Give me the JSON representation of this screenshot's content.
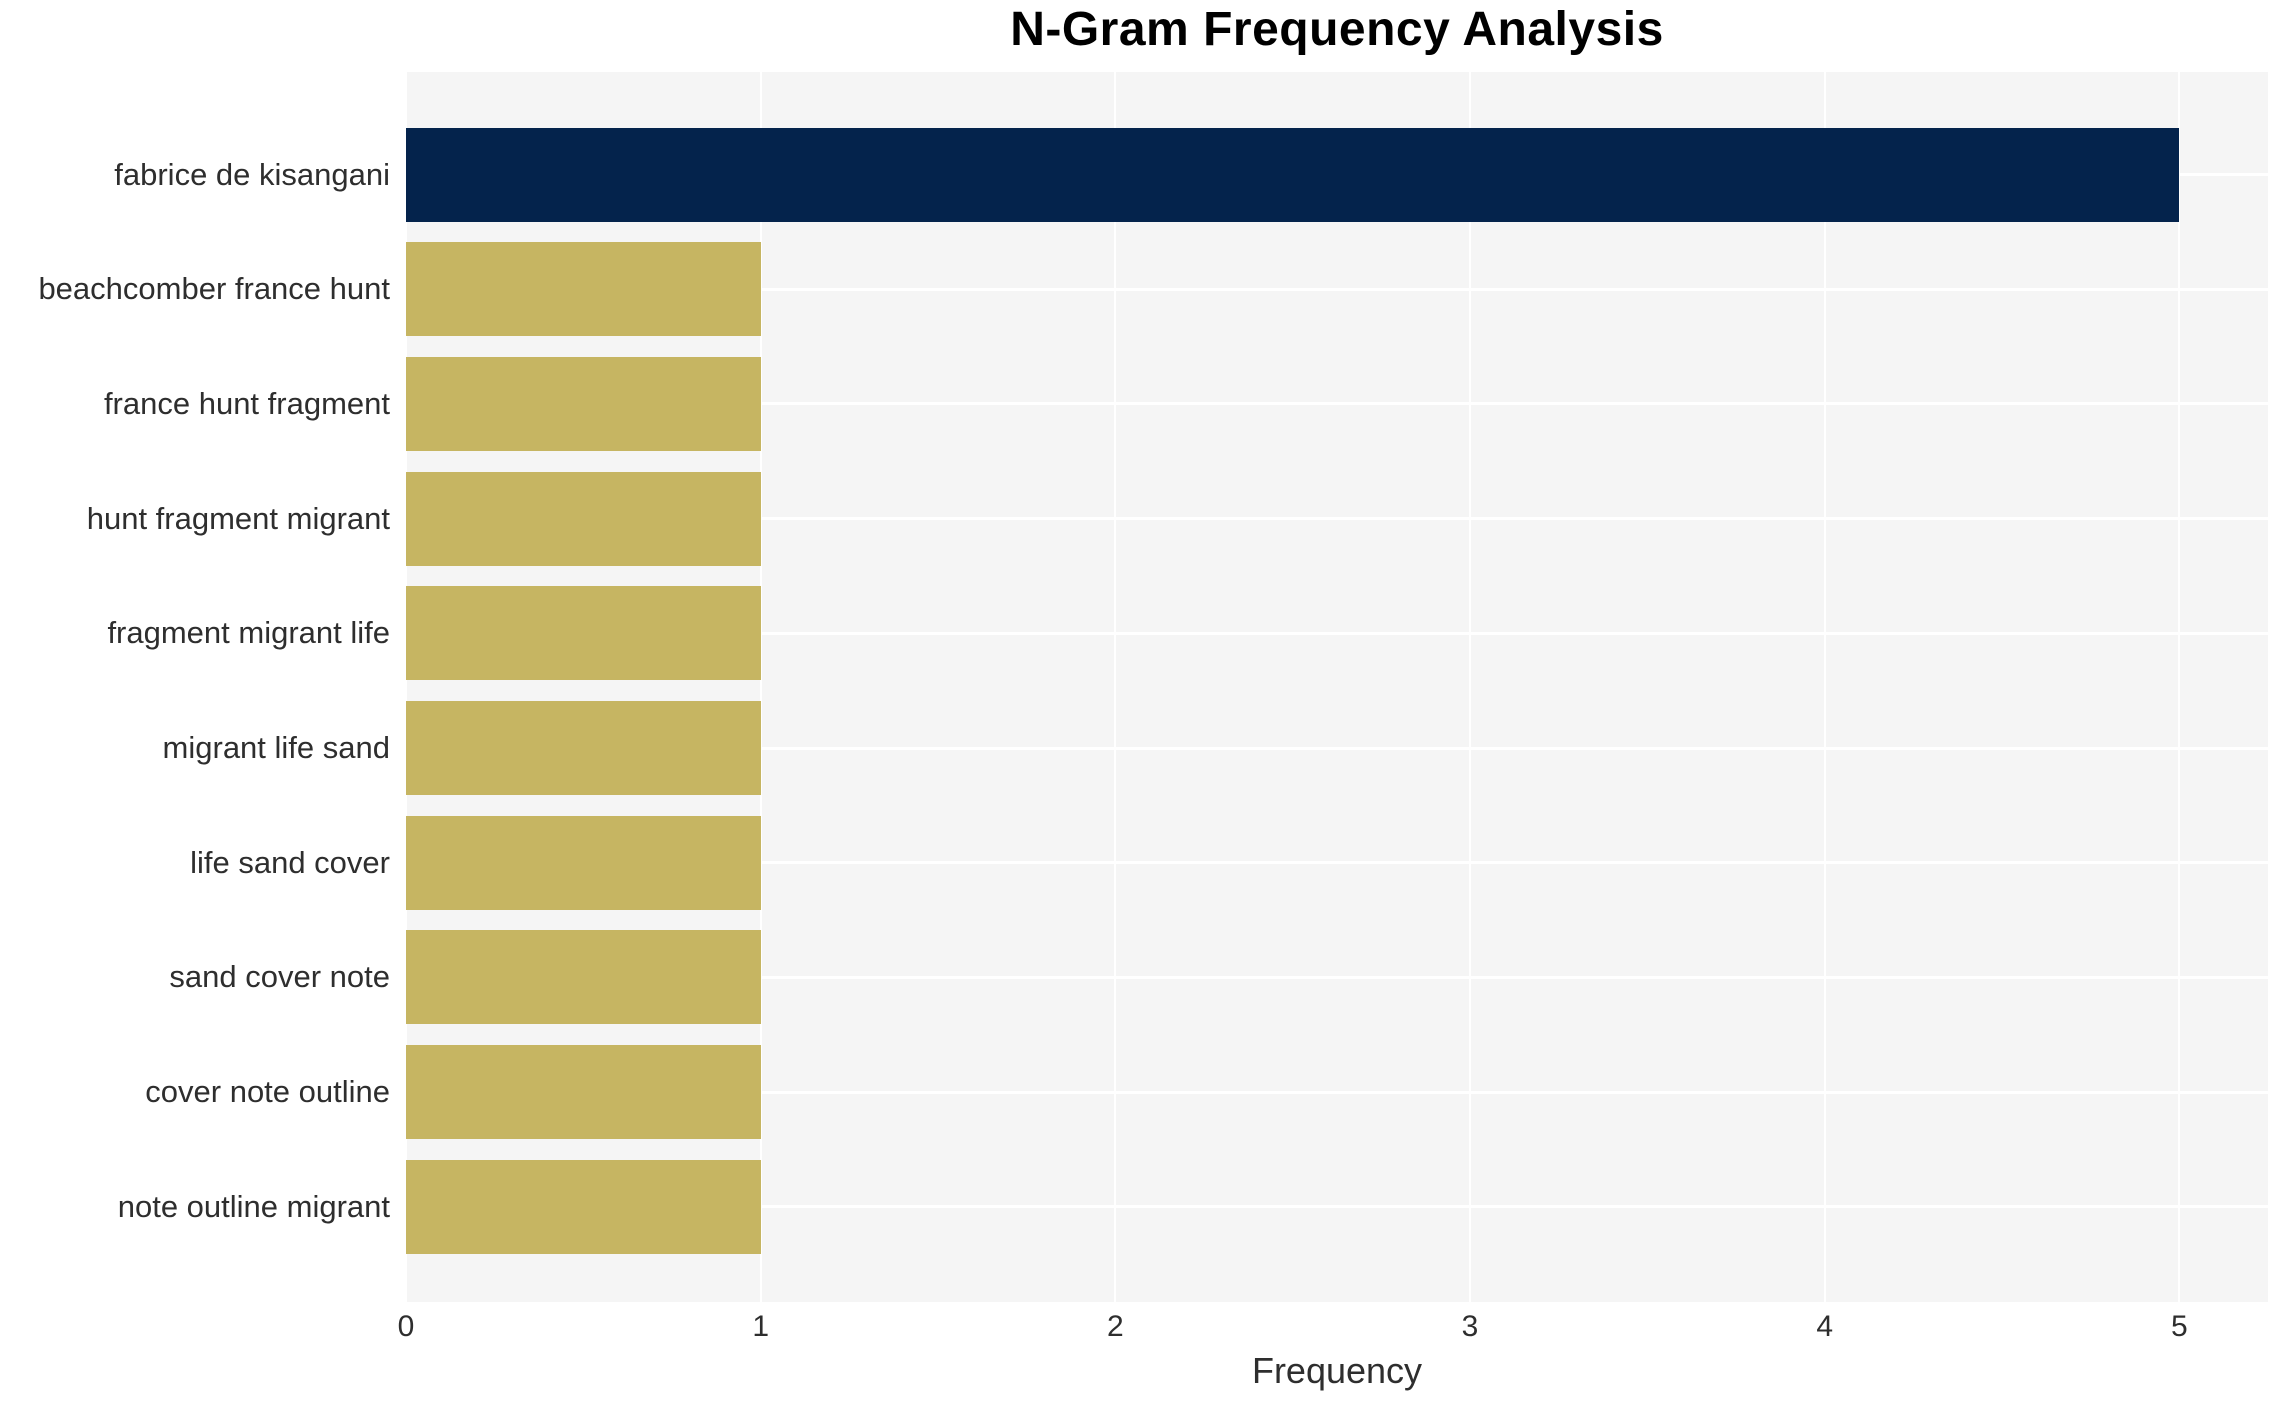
{
  "title": "N-Gram Frequency Analysis",
  "chart_data": {
    "type": "bar",
    "orientation": "horizontal",
    "title": "N-Gram Frequency Analysis",
    "xlabel": "Frequency",
    "ylabel": "",
    "categories": [
      "fabrice de kisangani",
      "beachcomber france hunt",
      "france hunt fragment",
      "hunt fragment migrant",
      "fragment migrant life",
      "migrant life sand",
      "life sand cover",
      "sand cover note",
      "cover note outline",
      "note outline migrant"
    ],
    "values": [
      5,
      1,
      1,
      1,
      1,
      1,
      1,
      1,
      1,
      1
    ],
    "xticks": [
      0,
      1,
      2,
      3,
      4,
      5
    ],
    "xlim": [
      0,
      5.25
    ],
    "grid": true,
    "legend": false,
    "colors": {
      "highlight_bar": "#04234c",
      "default_bar": "#c6b562",
      "plot_background": "#f5f5f5",
      "gridline": "#ffffff",
      "label_text": "#2e2e2e",
      "title_text": "#000000"
    }
  }
}
